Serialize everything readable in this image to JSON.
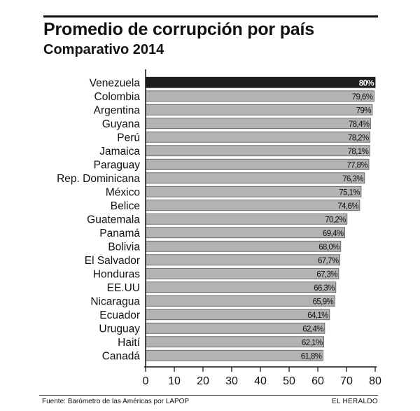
{
  "title": "Promedio de corrupción por país",
  "subtitle": "Comparativo 2014",
  "source": "Fuente: Barómetro de las Américas por LAPOP",
  "brand": "EL HERALDO",
  "colors": {
    "highlight": "#1e1e1e",
    "bar": "#b3b3b3",
    "bar_border": "#555555",
    "axis": "#111111"
  },
  "chart_data": {
    "type": "bar",
    "orientation": "horizontal",
    "categories": [
      "Venezuela",
      "Colombia",
      "Argentina",
      "Guyana",
      "Perú",
      "Jamaica",
      "Paraguay",
      "Rep. Dominicana",
      "México",
      "Belice",
      "Guatemala",
      "Panamá",
      "Bolivia",
      "El Salvador",
      "Honduras",
      "EE.UU",
      "Nicaragua",
      "Ecuador",
      "Uruguay",
      "Haití",
      "Canadá"
    ],
    "values": [
      80,
      79.6,
      79,
      78.4,
      78.2,
      78.1,
      77.8,
      76.3,
      75.1,
      74.6,
      70.2,
      69.4,
      68.0,
      67.7,
      67.3,
      66.3,
      65.9,
      64.1,
      62.4,
      62.1,
      61.8
    ],
    "value_labels": [
      "80%",
      "79,6%",
      "79%",
      "78,4%",
      "78,2%",
      "78,1%",
      "77,8%",
      "76,3%",
      "75,1%",
      "74,6%",
      "70,2%",
      "69,4%",
      "68,0%",
      "67,7%",
      "67,3%",
      "66,3%",
      "65,9%",
      "64,1%",
      "62,4%",
      "62,1%",
      "61,8%"
    ],
    "highlight_index": 0,
    "xlim": [
      0,
      80
    ],
    "xticks": [
      "0",
      "10",
      "20",
      "30",
      "40",
      "50",
      "60",
      "70",
      "80"
    ],
    "title": "Promedio de corrupción por país",
    "subtitle": "Comparativo 2014",
    "xlabel": "",
    "ylabel": "",
    "grid": false,
    "legend": "none"
  }
}
